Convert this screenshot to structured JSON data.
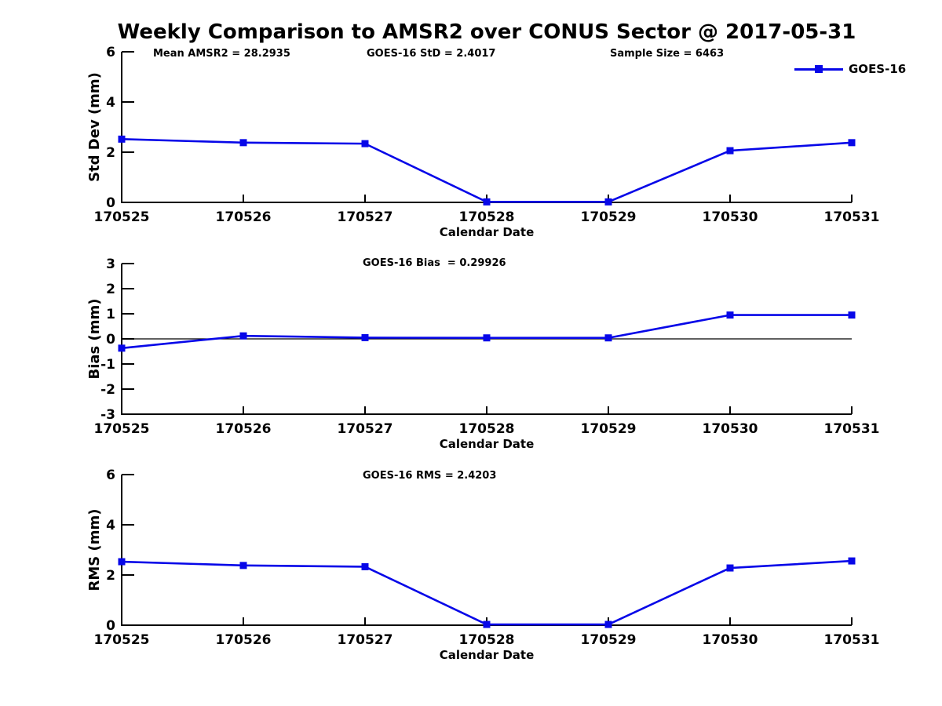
{
  "title": "Weekly Comparison to AMSR2 over CONUS Sector @ 2017-05-31",
  "colors": {
    "line": "#0707e8",
    "axis": "#000000",
    "background": "#ffffff",
    "text": "#000000"
  },
  "legend": {
    "label": "GOES-16"
  },
  "header_stats": {
    "mean_amsr2": "Mean AMSR2 = 28.2935",
    "goes16_std": "GOES-16 StD = 2.4017",
    "sample_size": "Sample Size = 6463"
  },
  "chart_data": [
    {
      "type": "line",
      "title": "",
      "ylabel": "Std Dev (mm)",
      "xlabel": "Calendar Date",
      "categories": [
        "170525",
        "170526",
        "170527",
        "170528",
        "170529",
        "170530",
        "170531"
      ],
      "series": [
        {
          "name": "GOES-16",
          "values": [
            2.52,
            2.38,
            2.34,
            0.02,
            0.02,
            2.06,
            2.38
          ]
        }
      ],
      "ylim": [
        0,
        6
      ],
      "yticks": [
        0,
        2,
        4,
        6
      ],
      "grid": false,
      "zero_line": false,
      "legend_position": "top-right",
      "annotations": {
        "mean_amsr2": "Mean AMSR2 = 28.2935",
        "goes16_std": "GOES-16 StD = 2.4017",
        "sample_size": "Sample Size = 6463"
      }
    },
    {
      "type": "line",
      "title": "",
      "ylabel": "Bias (mm)",
      "xlabel": "Calendar Date",
      "categories": [
        "170525",
        "170526",
        "170527",
        "170528",
        "170529",
        "170530",
        "170531"
      ],
      "series": [
        {
          "name": "GOES-16",
          "values": [
            -0.37,
            0.12,
            0.05,
            0.04,
            0.04,
            0.95,
            0.95
          ]
        }
      ],
      "ylim": [
        -3,
        3
      ],
      "yticks": [
        -3,
        -2,
        -1,
        0,
        1,
        2,
        3
      ],
      "grid": false,
      "zero_line": true,
      "annotation": "GOES-16 Bias  = 0.29926"
    },
    {
      "type": "line",
      "title": "",
      "ylabel": "RMS (mm)",
      "xlabel": "Calendar Date",
      "categories": [
        "170525",
        "170526",
        "170527",
        "170528",
        "170529",
        "170530",
        "170531"
      ],
      "series": [
        {
          "name": "GOES-16",
          "values": [
            2.53,
            2.38,
            2.33,
            0.03,
            0.03,
            2.28,
            2.56
          ]
        }
      ],
      "ylim": [
        0,
        6
      ],
      "yticks": [
        0,
        2,
        4,
        6
      ],
      "grid": false,
      "zero_line": false,
      "annotation": "GOES-16 RMS = 2.4203"
    }
  ]
}
